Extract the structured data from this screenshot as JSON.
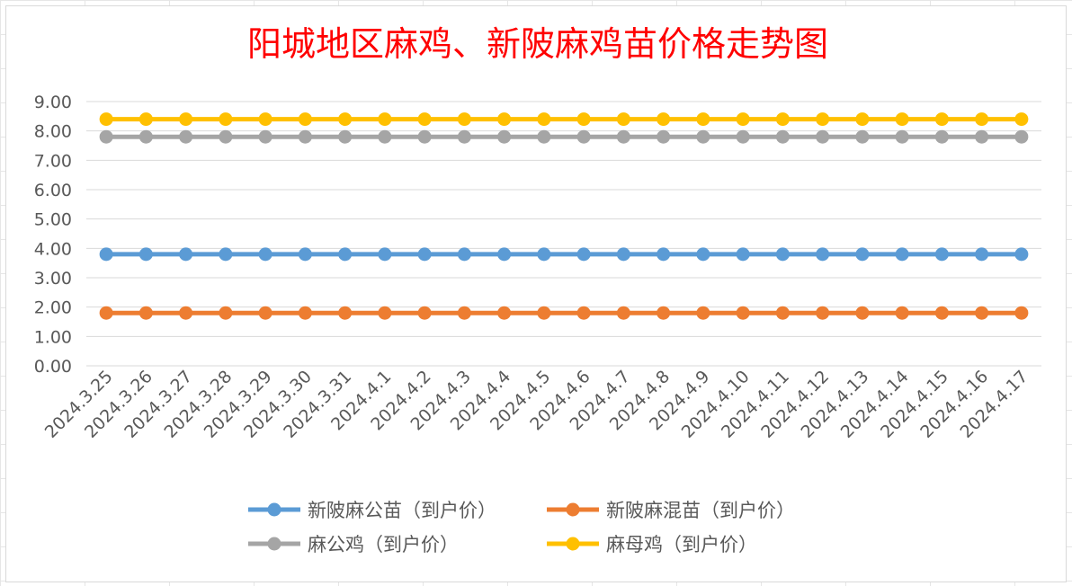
{
  "chart_data": {
    "type": "line",
    "title": "阳城地区麻鸡、新陂麻鸡苗价格走势图",
    "xlabel": "",
    "ylabel": "",
    "ylim": [
      0,
      9
    ],
    "y_ticks": [
      "0.00",
      "1.00",
      "2.00",
      "3.00",
      "4.00",
      "5.00",
      "6.00",
      "7.00",
      "8.00",
      "9.00"
    ],
    "grid": true,
    "legend_position": "bottom",
    "categories": [
      "2024.3.25",
      "2024.3.26",
      "2024.3.27",
      "2024.3.28",
      "2024.3.29",
      "2024.3.30",
      "2024.3.31",
      "2024.4.1",
      "2024.4.2",
      "2024.4.3",
      "2024.4.4",
      "2024.4.5",
      "2024.4.6",
      "2024.4.7",
      "2024.4.8",
      "2024.4.9",
      "2024.4.10",
      "2024.4.11",
      "2024.4.12",
      "2024.4.13",
      "2024.4.14",
      "2024.4.15",
      "2024.4.16",
      "2024.4.17"
    ],
    "series": [
      {
        "name": "新陂麻公苗（到户价）",
        "color": "#5b9bd5",
        "values": [
          3.8,
          3.8,
          3.8,
          3.8,
          3.8,
          3.8,
          3.8,
          3.8,
          3.8,
          3.8,
          3.8,
          3.8,
          3.8,
          3.8,
          3.8,
          3.8,
          3.8,
          3.8,
          3.8,
          3.8,
          3.8,
          3.8,
          3.8,
          3.8
        ]
      },
      {
        "name": "新陂麻混苗（到户价）",
        "color": "#ed7d31",
        "values": [
          1.8,
          1.8,
          1.8,
          1.8,
          1.8,
          1.8,
          1.8,
          1.8,
          1.8,
          1.8,
          1.8,
          1.8,
          1.8,
          1.8,
          1.8,
          1.8,
          1.8,
          1.8,
          1.8,
          1.8,
          1.8,
          1.8,
          1.8,
          1.8
        ]
      },
      {
        "name": "麻公鸡（到户价）",
        "color": "#a5a5a5",
        "values": [
          7.8,
          7.8,
          7.8,
          7.8,
          7.8,
          7.8,
          7.8,
          7.8,
          7.8,
          7.8,
          7.8,
          7.8,
          7.8,
          7.8,
          7.8,
          7.8,
          7.8,
          7.8,
          7.8,
          7.8,
          7.8,
          7.8,
          7.8,
          7.8
        ]
      },
      {
        "name": "麻母鸡（到户价）",
        "color": "#ffc000",
        "values": [
          8.4,
          8.4,
          8.4,
          8.4,
          8.4,
          8.4,
          8.4,
          8.4,
          8.4,
          8.4,
          8.4,
          8.4,
          8.4,
          8.4,
          8.4,
          8.4,
          8.4,
          8.4,
          8.4,
          8.4,
          8.4,
          8.4,
          8.4,
          8.4
        ]
      }
    ]
  }
}
